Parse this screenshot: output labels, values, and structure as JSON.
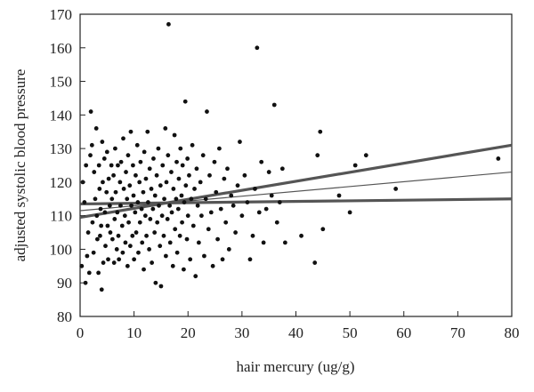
{
  "chart_data": {
    "type": "scatter",
    "title": "",
    "xlabel": "hair mercury (ug/g)",
    "ylabel": "adjusted systolic blood pressure",
    "xlim": [
      0,
      80
    ],
    "ylim": [
      80,
      170
    ],
    "x_ticks": [
      "0",
      "10",
      "20",
      "30",
      "40",
      "50",
      "60",
      "70",
      "80"
    ],
    "y_ticks": [
      "80",
      "90",
      "100",
      "110",
      "120",
      "130",
      "140",
      "150",
      "160",
      "170"
    ],
    "grid": false,
    "legend": "none",
    "colors": {
      "points": "#111111",
      "lines": "#555555",
      "frame": "#222222"
    },
    "series": [
      {
        "kind": "points",
        "points": [
          [
            0.3,
            95
          ],
          [
            1,
            90
          ],
          [
            0.5,
            120
          ],
          [
            0.8,
            114
          ],
          [
            1.1,
            125
          ],
          [
            1.3,
            98
          ],
          [
            1.5,
            105
          ],
          [
            1.7,
            93
          ],
          [
            1.9,
            128
          ],
          [
            2.0,
            141
          ],
          [
            2.2,
            131
          ],
          [
            2.3,
            108
          ],
          [
            2.5,
            99
          ],
          [
            2.6,
            123
          ],
          [
            2.8,
            115
          ],
          [
            3.0,
            136
          ],
          [
            3.1,
            110
          ],
          [
            3.2,
            103
          ],
          [
            3.4,
            93
          ],
          [
            3.5,
            125
          ],
          [
            3.6,
            118
          ],
          [
            3.7,
            104
          ],
          [
            3.8,
            112
          ],
          [
            3.9,
            107
          ],
          [
            4.0,
            88
          ],
          [
            4.1,
            132
          ],
          [
            4.2,
            120
          ],
          [
            4.3,
            96
          ],
          [
            4.5,
            127
          ],
          [
            4.6,
            111
          ],
          [
            4.7,
            101
          ],
          [
            4.9,
            117
          ],
          [
            5.0,
            129
          ],
          [
            5.1,
            107
          ],
          [
            5.2,
            97
          ],
          [
            5.3,
            121
          ],
          [
            5.5,
            113
          ],
          [
            5.6,
            105
          ],
          [
            5.8,
            125
          ],
          [
            5.9,
            115
          ],
          [
            6.0,
            103
          ],
          [
            6.2,
            122
          ],
          [
            6.3,
            96
          ],
          [
            6.4,
            109
          ],
          [
            6.5,
            130
          ],
          [
            6.6,
            117
          ],
          [
            6.8,
            100
          ],
          [
            6.9,
            111
          ],
          [
            7.0,
            125
          ],
          [
            7.1,
            104
          ],
          [
            7.2,
            97
          ],
          [
            7.4,
            120
          ],
          [
            7.5,
            113
          ],
          [
            7.6,
            126
          ],
          [
            7.8,
            107
          ],
          [
            7.9,
            99
          ],
          [
            8.0,
            133
          ],
          [
            8.1,
            118
          ],
          [
            8.3,
            110
          ],
          [
            8.4,
            102
          ],
          [
            8.5,
            123
          ],
          [
            8.7,
            115
          ],
          [
            8.8,
            95
          ],
          [
            8.9,
            128
          ],
          [
            9.0,
            108
          ],
          [
            9.2,
            119
          ],
          [
            9.3,
            101
          ],
          [
            9.4,
            135
          ],
          [
            9.5,
            113
          ],
          [
            9.7,
            104
          ],
          [
            9.8,
            125
          ],
          [
            9.9,
            116
          ],
          [
            10.0,
            97
          ],
          [
            10.2,
            111
          ],
          [
            10.3,
            122
          ],
          [
            10.4,
            105
          ],
          [
            10.6,
            131
          ],
          [
            10.7,
            114
          ],
          [
            10.8,
            99
          ],
          [
            11.0,
            120
          ],
          [
            11.1,
            108
          ],
          [
            11.2,
            126
          ],
          [
            11.4,
            112
          ],
          [
            11.5,
            102
          ],
          [
            11.7,
            117
          ],
          [
            11.8,
            94
          ],
          [
            11.9,
            129
          ],
          [
            12.1,
            110
          ],
          [
            12.2,
            121
          ],
          [
            12.3,
            104
          ],
          [
            12.5,
            135
          ],
          [
            12.6,
            114
          ],
          [
            12.8,
            100
          ],
          [
            12.9,
            124
          ],
          [
            13.0,
            109
          ],
          [
            13.2,
            118
          ],
          [
            13.3,
            96
          ],
          [
            13.5,
            112
          ],
          [
            13.6,
            127
          ],
          [
            13.8,
            105
          ],
          [
            13.9,
            116
          ],
          [
            14.0,
            90
          ],
          [
            14.2,
            122
          ],
          [
            14.3,
            108
          ],
          [
            14.5,
            130
          ],
          [
            14.6,
            113
          ],
          [
            14.8,
            101
          ],
          [
            14.9,
            119
          ],
          [
            15.0,
            89
          ],
          [
            15.2,
            110
          ],
          [
            15.3,
            125
          ],
          [
            15.5,
            104
          ],
          [
            15.6,
            115
          ],
          [
            15.8,
            136
          ],
          [
            15.9,
            98
          ],
          [
            16.0,
            120
          ],
          [
            16.2,
            109
          ],
          [
            16.3,
            128
          ],
          [
            16.4,
            167
          ],
          [
            16.6,
            113
          ],
          [
            16.7,
            102
          ],
          [
            16.9,
            123
          ],
          [
            17.0,
            111
          ],
          [
            17.2,
            95
          ],
          [
            17.3,
            118
          ],
          [
            17.5,
            134
          ],
          [
            17.6,
            106
          ],
          [
            17.8,
            115
          ],
          [
            17.9,
            126
          ],
          [
            18.0,
            99
          ],
          [
            18.2,
            112
          ],
          [
            18.3,
            121
          ],
          [
            18.5,
            104
          ],
          [
            18.6,
            130
          ],
          [
            18.8,
            116
          ],
          [
            18.9,
            108
          ],
          [
            19.0,
            125
          ],
          [
            19.2,
            94
          ],
          [
            19.3,
            114
          ],
          [
            19.5,
            144
          ],
          [
            19.6,
            119
          ],
          [
            19.8,
            103
          ],
          [
            19.9,
            127
          ],
          [
            20.0,
            110
          ],
          [
            20.2,
            122
          ],
          [
            20.4,
            97
          ],
          [
            20.6,
            115
          ],
          [
            20.8,
            131
          ],
          [
            21.0,
            107
          ],
          [
            21.2,
            118
          ],
          [
            21.4,
            92
          ],
          [
            21.6,
            124
          ],
          [
            21.8,
            113
          ],
          [
            22.0,
            102
          ],
          [
            22.3,
            120
          ],
          [
            22.5,
            110
          ],
          [
            22.8,
            128
          ],
          [
            23.0,
            98
          ],
          [
            23.3,
            115
          ],
          [
            23.5,
            141
          ],
          [
            23.8,
            106
          ],
          [
            24.0,
            122
          ],
          [
            24.3,
            111
          ],
          [
            24.6,
            95
          ],
          [
            24.9,
            126
          ],
          [
            25.2,
            117
          ],
          [
            25.5,
            103
          ],
          [
            25.8,
            130
          ],
          [
            26.1,
            112
          ],
          [
            26.4,
            97
          ],
          [
            26.7,
            121
          ],
          [
            27.0,
            108
          ],
          [
            27.3,
            124
          ],
          [
            27.6,
            100
          ],
          [
            28.0,
            116
          ],
          [
            28.4,
            113
          ],
          [
            28.8,
            105
          ],
          [
            29.2,
            119
          ],
          [
            29.6,
            132
          ],
          [
            30.0,
            110
          ],
          [
            30.5,
            122
          ],
          [
            31.0,
            114
          ],
          [
            31.5,
            97
          ],
          [
            32.0,
            104
          ],
          [
            32.4,
            118
          ],
          [
            32.8,
            160
          ],
          [
            33.2,
            111
          ],
          [
            33.6,
            126
          ],
          [
            34.0,
            102
          ],
          [
            34.5,
            112
          ],
          [
            35.0,
            123
          ],
          [
            35.5,
            116
          ],
          [
            36.0,
            143
          ],
          [
            36.5,
            108
          ],
          [
            37.0,
            114
          ],
          [
            37.5,
            124
          ],
          [
            38.0,
            102
          ],
          [
            41.0,
            104
          ],
          [
            43.5,
            96
          ],
          [
            44.0,
            128
          ],
          [
            44.5,
            135
          ],
          [
            45.0,
            106
          ],
          [
            48.0,
            116
          ],
          [
            50.0,
            111
          ],
          [
            51.0,
            125
          ],
          [
            53.0,
            128
          ],
          [
            58.5,
            118
          ],
          [
            77.5,
            127
          ]
        ]
      },
      {
        "kind": "line",
        "name": "",
        "x": [
          0,
          80
        ],
        "y": [
          109.5,
          131.0
        ],
        "weight": "thick"
      },
      {
        "kind": "line",
        "name": "",
        "x": [
          0,
          80
        ],
        "y": [
          111.5,
          123.0
        ],
        "weight": "thin"
      },
      {
        "kind": "line",
        "name": "",
        "x": [
          0,
          80
        ],
        "y": [
          113.5,
          115.0
        ],
        "weight": "thick"
      }
    ]
  }
}
